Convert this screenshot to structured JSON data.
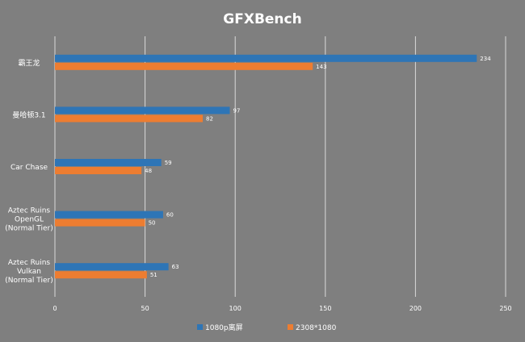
{
  "chart_data": {
    "type": "bar",
    "orientation": "horizontal",
    "title": "GFXBench",
    "categories": [
      "霸王龙",
      "曼哈顿3.1",
      "Car Chase",
      "Aztec Ruins OpenGL (Normal Tier)",
      "Aztec Ruins Vulkan (Normal Tier)"
    ],
    "category_lines": [
      [
        "霸王龙"
      ],
      [
        "曼哈顿3.1"
      ],
      [
        "Car Chase"
      ],
      [
        "Aztec Ruins",
        "OpenGL",
        "(Normal Tier)"
      ],
      [
        "Aztec Ruins",
        "Vulkan",
        "(Normal Tier)"
      ]
    ],
    "series": [
      {
        "name": "1080p离屏",
        "color": "#2e75b6",
        "values": [
          234,
          97,
          59,
          60,
          63
        ]
      },
      {
        "name": "2308*1080",
        "color": "#ed7d31",
        "values": [
          143,
          82,
          48,
          50,
          51
        ]
      }
    ],
    "xlim": [
      0,
      250
    ],
    "xticks": [
      0,
      50,
      100,
      150,
      200,
      250
    ],
    "grid": true,
    "legend_position": "bottom",
    "data_labels": true
  },
  "colors": {
    "background": "#7f7f7f",
    "gridline": "#d9d9d9",
    "text": "#ffffff"
  }
}
